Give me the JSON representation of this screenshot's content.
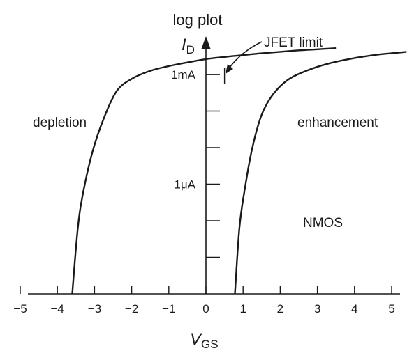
{
  "chart_data": {
    "type": "line",
    "title": "log plot",
    "xlabel": "V",
    "xlabel_sub": "GS",
    "ylabel": "I",
    "ylabel_sub": "D",
    "xlim": [
      -5,
      5.4
    ],
    "xticks": [
      -5,
      -4,
      -3,
      -2,
      -1,
      0,
      1,
      2,
      3,
      4,
      5
    ],
    "xtick_labels": [
      "−5",
      "−4",
      "−3",
      "−2",
      "−1",
      "0",
      "1",
      "2",
      "3",
      "4",
      "5"
    ],
    "y_scale": "log",
    "ytick_labels": [
      {
        "label": "1mA",
        "value_A": 0.001
      },
      {
        "label": "1μA",
        "value_A": 1e-06
      }
    ],
    "ylim_decades_log10_A": [
      -9,
      -2.2
    ],
    "series": [
      {
        "region": "depletion",
        "x": [
          -3.6,
          -3.45,
          -3.3,
          -3.05,
          -2.75,
          -2.4,
          -2.0,
          -1.5,
          -1.0,
          -0.5,
          0,
          0.5,
          1,
          1.5,
          2,
          2.5,
          3,
          3.5
        ],
        "log10_id_A": [
          -9.0,
          -7.2,
          -6.2,
          -5.1,
          -4.2,
          -3.45,
          -3.12,
          -2.9,
          -2.77,
          -2.67,
          -2.58,
          -2.52,
          -2.47,
          -2.42,
          -2.38,
          -2.34,
          -2.31,
          -2.28
        ]
      },
      {
        "region": "enhancement",
        "x": [
          0.78,
          0.9,
          1.05,
          1.25,
          1.5,
          1.8,
          2.2,
          2.7,
          3.3,
          4.0,
          4.6,
          5.1,
          5.4
        ],
        "log10_id_A": [
          -9.0,
          -7.2,
          -6.1,
          -5.0,
          -4.1,
          -3.55,
          -3.15,
          -2.9,
          -2.7,
          -2.55,
          -2.46,
          -2.41,
          -2.38
        ]
      }
    ],
    "annotations": {
      "jfet_limit": {
        "text": "JFET limit",
        "x": 0.5
      },
      "depletion": "depletion",
      "enhancement": "enhancement",
      "nmos": "NMOS"
    }
  }
}
